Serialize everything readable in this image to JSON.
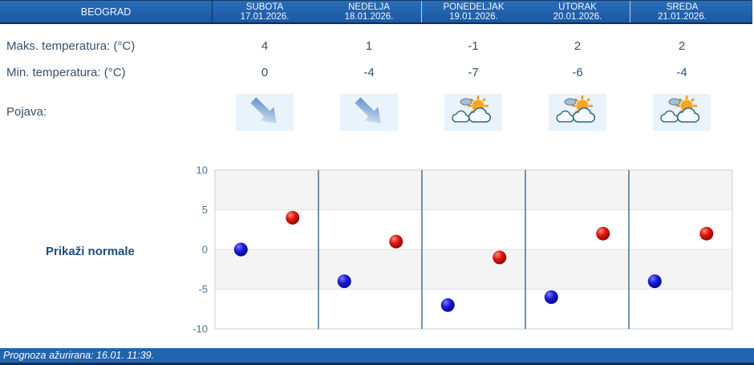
{
  "table": {
    "location": "BEOGRAD",
    "labels": {
      "max": "Maks. temperatura: (°C)",
      "min": "Min. temperatura: (°C)",
      "pojava": "Pojava:"
    },
    "days": [
      {
        "name": "SUBOTA",
        "date": "17.01.2026.",
        "max": "4",
        "min": "0",
        "icon": "falling-arrow"
      },
      {
        "name": "NEDELJA",
        "date": "18.01.2026.",
        "max": "1",
        "min": "-4",
        "icon": "falling-arrow"
      },
      {
        "name": "PONEDELJAK",
        "date": "19.01.2026.",
        "max": "-1",
        "min": "-7",
        "icon": "sun-behind-clouds"
      },
      {
        "name": "UTORAK",
        "date": "20.01.2026.",
        "max": "2",
        "min": "-6",
        "icon": "sun-behind-clouds"
      },
      {
        "name": "SREDA",
        "date": "21.01.2026.",
        "max": "2",
        "min": "-4",
        "icon": "sun-behind-clouds"
      }
    ]
  },
  "controls": {
    "show_normals_label": "Prikaži normale"
  },
  "chart_data": {
    "type": "scatter",
    "title": "",
    "xlabel": "",
    "ylabel": "",
    "categories": [
      "SUBOTA",
      "NEDELJA",
      "PONEDELJAK",
      "UTORAK",
      "SREDA"
    ],
    "series": [
      {
        "name": "Min. temperatura (°C)",
        "color_gradient": "gradBlue",
        "base_color": "#1414c8",
        "values": [
          0,
          -4,
          -7,
          -6,
          -4
        ]
      },
      {
        "name": "Maks. temperatura (°C)",
        "color_gradient": "gradRed",
        "base_color": "#cc1414",
        "values": [
          4,
          1,
          -1,
          2,
          2
        ]
      }
    ],
    "ylim": [
      -10,
      10
    ],
    "yticks": [
      10,
      5,
      0,
      -5,
      -10
    ],
    "grid": "horizontal-bands",
    "legend": "none",
    "band_fill": "#f4f4f4",
    "grid_line_color": "#e0e0e0",
    "day_separator_color": "#44718f",
    "plot_border_color": "#cfcfcf"
  },
  "footer": {
    "updated_text": "Prognoza ažurirana:  16.01. 11:39."
  },
  "colors": {
    "header_blue": "#2161ae",
    "header_border_dark": "#0e2f5a",
    "label_text": "#3a5068",
    "normals_link": "#1d4e7e",
    "footer_blue": "#2263ae",
    "icon_tile_bg": "#e9f3fb"
  }
}
